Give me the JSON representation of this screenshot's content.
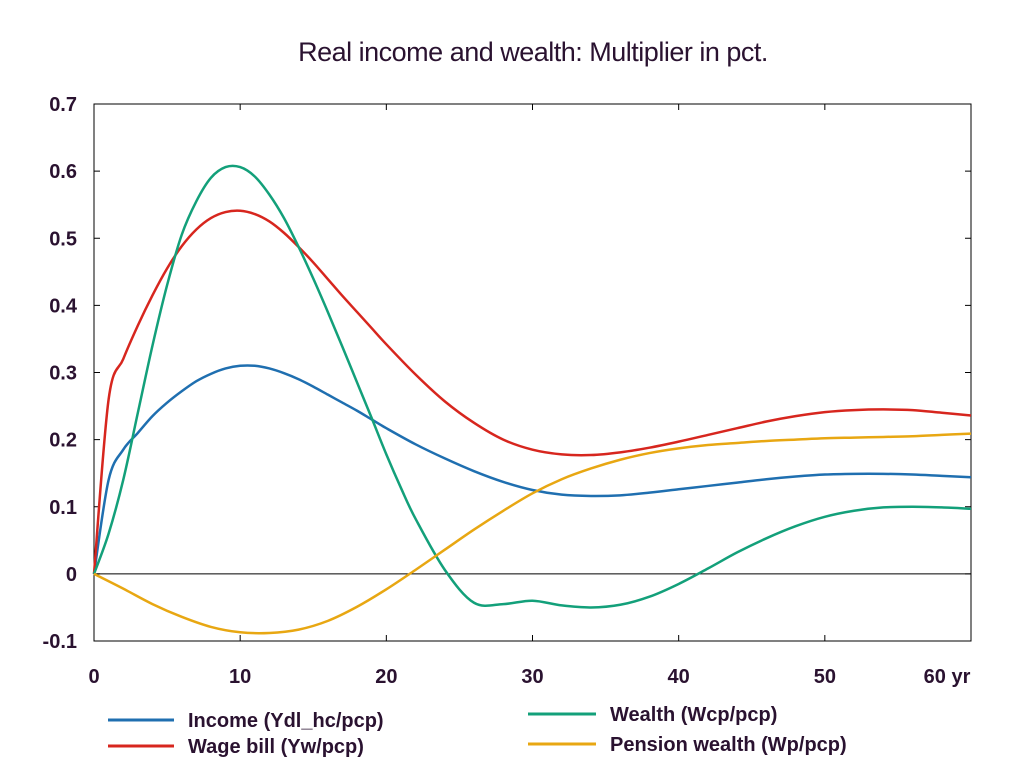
{
  "chart_data": {
    "type": "line",
    "title": "Real income and wealth: Multiplier in pct.",
    "xlabel": "",
    "ylabel": "",
    "xlim": [
      0,
      60
    ],
    "ylim": [
      -0.1,
      0.7
    ],
    "x_ticks": [
      "0",
      "10",
      "20",
      "30",
      "40",
      "50",
      "60 yr"
    ],
    "x_tick_values": [
      0,
      10,
      20,
      30,
      40,
      50,
      60
    ],
    "y_ticks": [
      "-0.1",
      "0",
      "0.1",
      "0.2",
      "0.3",
      "0.4",
      "0.5",
      "0.6",
      "0.7"
    ],
    "y_tick_values": [
      -0.1,
      0,
      0.1,
      0.2,
      0.3,
      0.4,
      0.5,
      0.6,
      0.7
    ],
    "grid": false,
    "zero_line": true,
    "legend_position": "bottom",
    "series": [
      {
        "name": "Income (Ydl_hc/pcp)",
        "color": "#1f6fb0",
        "x": [
          0,
          1,
          2,
          3,
          4,
          5,
          6,
          7,
          8,
          9,
          10,
          11,
          12,
          13,
          14,
          15,
          16,
          17,
          18,
          19,
          20,
          22,
          24,
          26,
          28,
          30,
          32,
          34,
          36,
          38,
          40,
          42,
          44,
          46,
          48,
          50,
          52,
          54,
          56,
          58,
          60
        ],
        "y": [
          0,
          0.14,
          0.185,
          0.21,
          0.235,
          0.255,
          0.272,
          0.287,
          0.298,
          0.306,
          0.31,
          0.31,
          0.306,
          0.299,
          0.29,
          0.279,
          0.267,
          0.255,
          0.243,
          0.23,
          0.217,
          0.193,
          0.172,
          0.153,
          0.137,
          0.125,
          0.118,
          0.116,
          0.117,
          0.121,
          0.126,
          0.131,
          0.136,
          0.141,
          0.145,
          0.148,
          0.149,
          0.149,
          0.148,
          0.146,
          0.144
        ]
      },
      {
        "name": "Wage bill (Yw/pcp)",
        "color": "#d7261e",
        "x": [
          0,
          1,
          2,
          3,
          4,
          5,
          6,
          7,
          8,
          9,
          10,
          11,
          12,
          13,
          14,
          15,
          16,
          17,
          18,
          19,
          20,
          22,
          24,
          26,
          28,
          30,
          32,
          34,
          36,
          38,
          40,
          42,
          44,
          46,
          48,
          50,
          52,
          54,
          56,
          58,
          60
        ],
        "y": [
          0,
          0.26,
          0.32,
          0.37,
          0.415,
          0.455,
          0.488,
          0.513,
          0.53,
          0.539,
          0.541,
          0.536,
          0.525,
          0.508,
          0.487,
          0.464,
          0.439,
          0.414,
          0.39,
          0.366,
          0.342,
          0.297,
          0.257,
          0.225,
          0.2,
          0.185,
          0.178,
          0.177,
          0.181,
          0.188,
          0.197,
          0.207,
          0.217,
          0.227,
          0.235,
          0.241,
          0.244,
          0.245,
          0.244,
          0.24,
          0.236
        ]
      },
      {
        "name": "Wealth (Wcp/pcp)",
        "color": "#13a07a",
        "x": [
          0,
          1,
          2,
          3,
          4,
          5,
          6,
          7,
          8,
          9,
          10,
          11,
          12,
          13,
          14,
          15,
          16,
          17,
          18,
          19,
          20,
          21,
          22,
          24,
          26,
          28,
          30,
          32,
          34,
          36,
          38,
          40,
          42,
          44,
          46,
          48,
          50,
          52,
          54,
          56,
          58,
          60
        ],
        "y": [
          0,
          0.06,
          0.14,
          0.24,
          0.34,
          0.43,
          0.505,
          0.555,
          0.59,
          0.606,
          0.606,
          0.592,
          0.565,
          0.53,
          0.487,
          0.44,
          0.39,
          0.338,
          0.285,
          0.232,
          0.178,
          0.128,
          0.082,
          0.006,
          -0.043,
          -0.045,
          -0.04,
          -0.047,
          -0.05,
          -0.046,
          -0.034,
          -0.015,
          0.008,
          0.032,
          0.053,
          0.071,
          0.085,
          0.094,
          0.099,
          0.1,
          0.099,
          0.097
        ]
      },
      {
        "name": "Pension wealth (Wp/pcp)",
        "color": "#e8a712",
        "x": [
          0,
          2,
          4,
          6,
          8,
          10,
          12,
          14,
          16,
          18,
          20,
          22,
          24,
          26,
          28,
          30,
          32,
          34,
          36,
          38,
          40,
          42,
          44,
          46,
          48,
          50,
          52,
          54,
          56,
          58,
          60
        ],
        "y": [
          0,
          -0.022,
          -0.045,
          -0.064,
          -0.079,
          -0.087,
          -0.088,
          -0.083,
          -0.07,
          -0.049,
          -0.023,
          0.006,
          0.036,
          0.066,
          0.094,
          0.12,
          0.141,
          0.157,
          0.17,
          0.18,
          0.187,
          0.192,
          0.195,
          0.198,
          0.2,
          0.202,
          0.203,
          0.204,
          0.205,
          0.207,
          0.209
        ]
      }
    ]
  }
}
